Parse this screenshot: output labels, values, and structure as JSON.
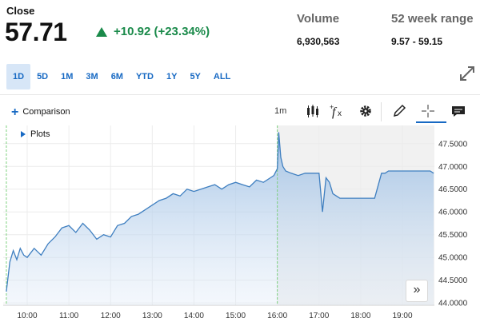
{
  "quote": {
    "close_label": "Close",
    "close_price": "57.71",
    "change": "+10.92 (+23.34%)",
    "volume_label": "Volume",
    "volume_value": "6,930,563",
    "range_label": "52 week range",
    "range_value": "9.57 - 59.15"
  },
  "ranges": [
    "1D",
    "5D",
    "1M",
    "3M",
    "6M",
    "YTD",
    "1Y",
    "5Y",
    "ALL"
  ],
  "active_range": "1D",
  "toolbar": {
    "comparison_label": "Comparison",
    "interval_label": "1m",
    "plots_label": "Plots",
    "nav_label": "»"
  },
  "colors": {
    "accent": "#1769c3",
    "positive": "#1a8a4a",
    "line": "#3f7fc0",
    "extended_shade": "#f1f1f1",
    "session_marker": "#7bd07b"
  },
  "chart_data": {
    "type": "area",
    "x_tick_labels": [
      "10:00",
      "11:00",
      "12:00",
      "13:00",
      "14:00",
      "15:00",
      "16:00",
      "17:00",
      "18:00",
      "19:00"
    ],
    "y_tick_labels": [
      "47.5000",
      "47.0000",
      "46.5000",
      "46.0000",
      "45.5000",
      "45.0000",
      "44.5000",
      "44.0000"
    ],
    "ylim": [
      43.95,
      47.9
    ],
    "grid": true,
    "extended_hours_shaded": true,
    "series": [
      {
        "x": [
          "09:30",
          "09:35",
          "09:40",
          "09:45",
          "09:50",
          "09:55",
          "10:00",
          "10:10",
          "10:20",
          "10:30",
          "10:40",
          "10:50",
          "11:00",
          "11:10",
          "11:20",
          "11:30",
          "11:40",
          "11:50",
          "12:00",
          "12:10",
          "12:20",
          "12:30",
          "12:40",
          "12:50",
          "13:00",
          "13:10",
          "13:20",
          "13:30",
          "13:40",
          "13:50",
          "14:00",
          "14:10",
          "14:20",
          "14:30",
          "14:40",
          "14:50",
          "15:00",
          "15:10",
          "15:20",
          "15:30",
          "15:40",
          "15:50",
          "15:55",
          "16:00",
          "16:02",
          "16:05",
          "16:08",
          "16:12",
          "16:20",
          "16:30",
          "16:40",
          "16:50",
          "17:00",
          "17:05",
          "17:10",
          "17:15",
          "17:20",
          "17:30",
          "17:40",
          "17:50",
          "18:00",
          "18:10",
          "18:20",
          "18:30",
          "18:35",
          "18:40",
          "18:50",
          "19:00",
          "19:10",
          "19:20",
          "19:30",
          "19:40",
          "19:45"
        ],
        "values": [
          44.25,
          44.9,
          45.15,
          44.95,
          45.2,
          45.05,
          45.0,
          45.2,
          45.05,
          45.3,
          45.45,
          45.65,
          45.7,
          45.55,
          45.75,
          45.6,
          45.4,
          45.5,
          45.45,
          45.7,
          45.75,
          45.9,
          45.95,
          46.05,
          46.15,
          46.25,
          46.3,
          46.4,
          46.35,
          46.5,
          46.45,
          46.5,
          46.55,
          46.6,
          46.5,
          46.6,
          46.65,
          46.6,
          46.55,
          46.7,
          46.65,
          46.75,
          46.8,
          46.95,
          47.75,
          47.2,
          47.0,
          46.9,
          46.85,
          46.8,
          46.85,
          46.85,
          46.85,
          46.0,
          46.75,
          46.65,
          46.4,
          46.3,
          46.3,
          46.3,
          46.3,
          46.3,
          46.3,
          46.85,
          46.85,
          46.9,
          46.9,
          46.9,
          46.9,
          46.9,
          46.9,
          46.9,
          46.85
        ]
      }
    ]
  }
}
